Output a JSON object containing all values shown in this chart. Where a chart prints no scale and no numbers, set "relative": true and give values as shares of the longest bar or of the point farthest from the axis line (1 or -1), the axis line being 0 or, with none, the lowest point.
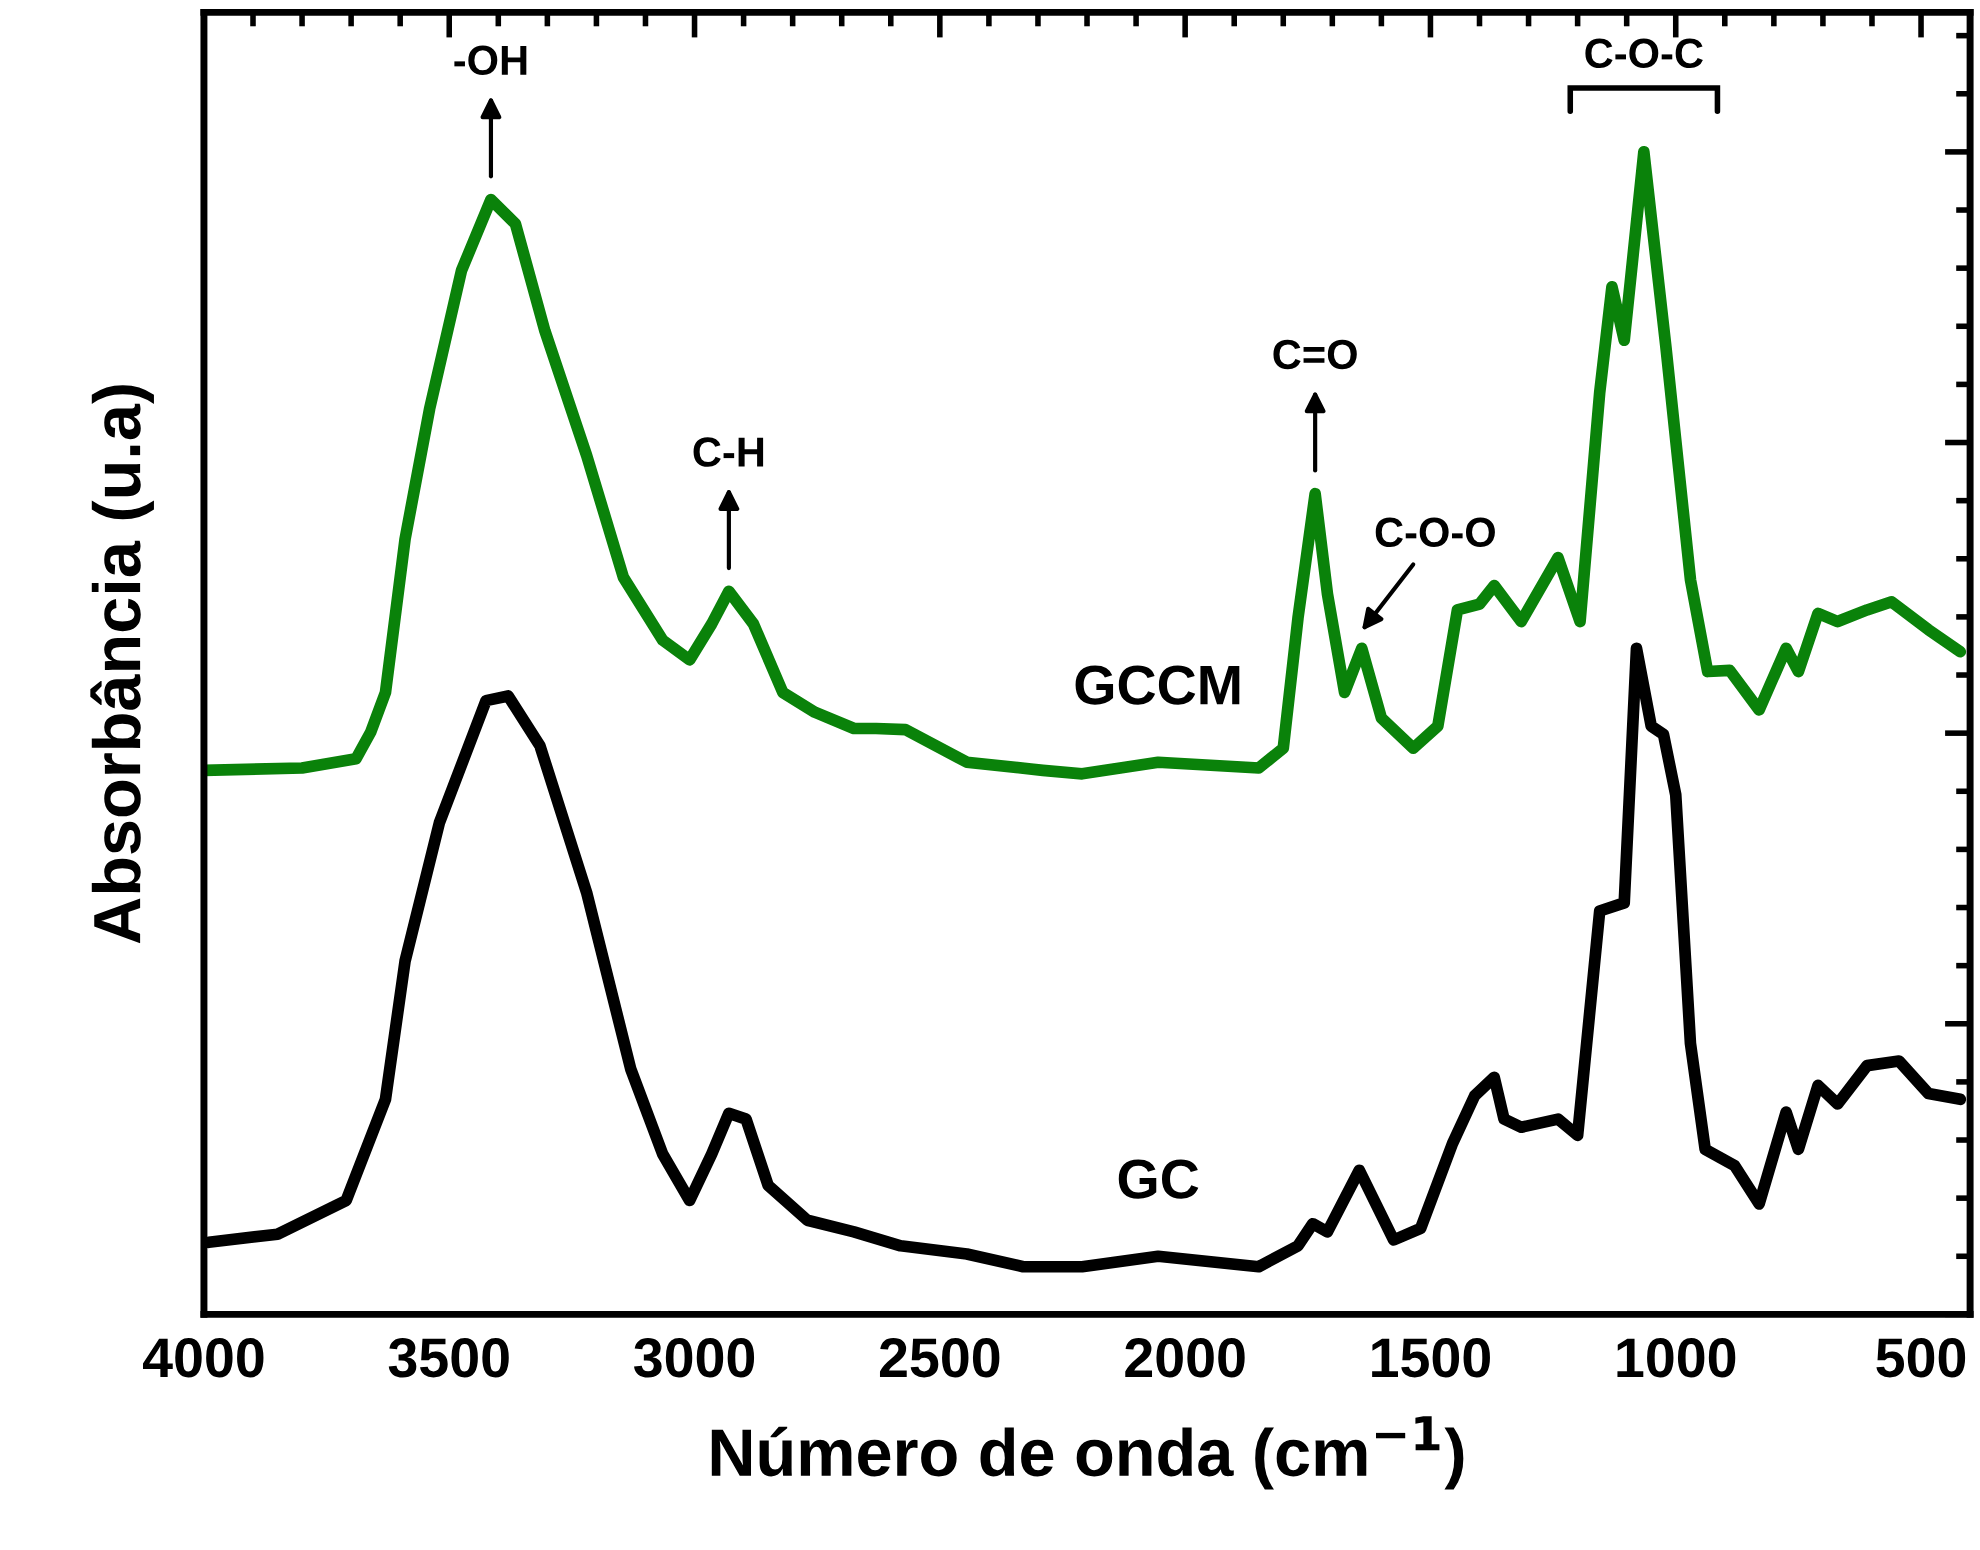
{
  "chart_data": {
    "type": "line",
    "xlabel": "Número de onda (cm$^{−1}$)",
    "ylabel": "Absorbância (u.a)",
    "relative": true,
    "xlim": [
      4000,
      400
    ],
    "xticks": [
      4000,
      3500,
      3000,
      2500,
      2000,
      1500,
      1000,
      500
    ],
    "grid": false,
    "legend": false,
    "line_style": "solid",
    "marker": "none",
    "series": [
      {
        "name": "GCCM",
        "color": "#0a820a",
        "x": [
          4000,
          3800,
          3690,
          3660,
          3630,
          3590,
          3540,
          3475,
          3415,
          3365,
          3305,
          3220,
          3145,
          3065,
          3010,
          2965,
          2930,
          2880,
          2820,
          2755,
          2675,
          2630,
          2570,
          2445,
          2290,
          2210,
          2055,
          1850,
          1800,
          1770,
          1735,
          1710,
          1675,
          1640,
          1600,
          1535,
          1485,
          1445,
          1400,
          1370,
          1315,
          1240,
          1195,
          1155,
          1130,
          1105,
          1065,
          1020,
          970,
          935,
          890,
          830,
          775,
          750,
          710,
          670,
          610,
          560,
          485,
          420
        ],
        "values": [
          0.468,
          0.47,
          0.478,
          0.501,
          0.535,
          0.667,
          0.779,
          0.898,
          0.959,
          0.938,
          0.846,
          0.739,
          0.634,
          0.58,
          0.563,
          0.594,
          0.622,
          0.594,
          0.535,
          0.518,
          0.504,
          0.504,
          0.503,
          0.475,
          0.468,
          0.465,
          0.475,
          0.47,
          0.487,
          0.599,
          0.706,
          0.62,
          0.535,
          0.573,
          0.513,
          0.487,
          0.506,
          0.606,
          0.611,
          0.627,
          0.596,
          0.651,
          0.596,
          0.793,
          0.884,
          0.838,
          1.0,
          0.832,
          0.632,
          0.553,
          0.554,
          0.52,
          0.573,
          0.553,
          0.603,
          0.596,
          0.606,
          0.613,
          0.589,
          0.57
        ]
      },
      {
        "name": "GC",
        "color": "#000000",
        "x": [
          3990,
          3850,
          3710,
          3630,
          3590,
          3520,
          3425,
          3380,
          3315,
          3220,
          3130,
          3065,
          3010,
          2965,
          2930,
          2895,
          2850,
          2770,
          2675,
          2580,
          2445,
          2330,
          2210,
          2055,
          1850,
          1770,
          1740,
          1710,
          1645,
          1575,
          1520,
          1455,
          1410,
          1370,
          1350,
          1315,
          1240,
          1200,
          1155,
          1105,
          1080,
          1050,
          1025,
          1000,
          970,
          940,
          880,
          830,
          775,
          750,
          710,
          670,
          610,
          545,
          485,
          420
        ],
        "values": [
          0.062,
          0.069,
          0.098,
          0.185,
          0.304,
          0.423,
          0.528,
          0.532,
          0.489,
          0.363,
          0.211,
          0.138,
          0.098,
          0.138,
          0.173,
          0.168,
          0.111,
          0.081,
          0.071,
          0.059,
          0.052,
          0.041,
          0.041,
          0.05,
          0.041,
          0.059,
          0.078,
          0.071,
          0.124,
          0.064,
          0.074,
          0.147,
          0.188,
          0.204,
          0.168,
          0.161,
          0.168,
          0.154,
          0.347,
          0.354,
          0.573,
          0.506,
          0.499,
          0.447,
          0.233,
          0.142,
          0.128,
          0.095,
          0.174,
          0.142,
          0.197,
          0.181,
          0.214,
          0.218,
          0.19,
          0.185
        ]
      }
    ],
    "annotations": [
      {
        "text": "-OH",
        "x": 3415,
        "y": 0.959
      },
      {
        "text": "C-H",
        "x": 2930,
        "y": 0.622
      },
      {
        "text": "C=O",
        "x": 1735,
        "y": 0.706
      },
      {
        "text": "C-O-O",
        "x": 1640,
        "y": 0.573
      },
      {
        "text": "C-O-C",
        "x": 1065,
        "y": 1.0
      }
    ]
  }
}
